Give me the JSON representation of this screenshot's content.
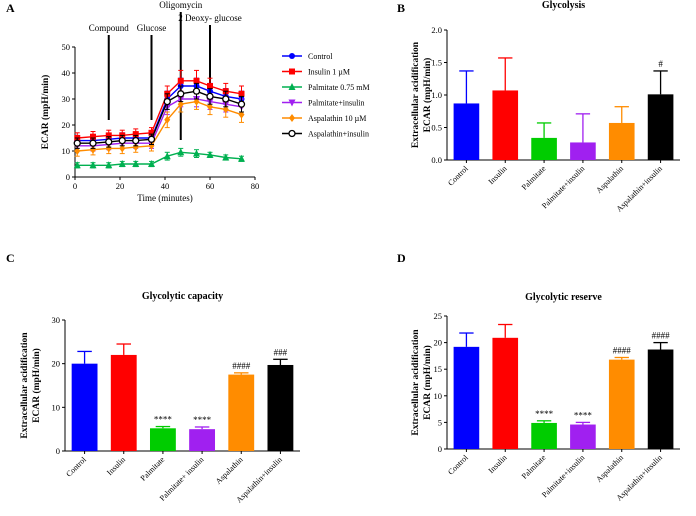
{
  "panels": {
    "A": {
      "label": "A"
    },
    "B": {
      "label": "B"
    },
    "C": {
      "label": "C"
    },
    "D": {
      "label": "D"
    }
  },
  "chart_data": [
    {
      "id": "A",
      "type": "line",
      "title": "",
      "xlabel": "Time (minutes)",
      "ylabel": "ECAR (mpH/min)",
      "xlim": [
        0,
        80
      ],
      "ylim": [
        0,
        50
      ],
      "xticks": [
        0,
        20,
        40,
        60,
        80
      ],
      "yticks": [
        0,
        10,
        20,
        30,
        40,
        50
      ],
      "x": [
        1,
        8,
        15,
        21,
        27,
        34,
        41,
        47,
        54,
        60,
        67,
        74
      ],
      "annotations": [
        {
          "text": "Compound",
          "x": 15
        },
        {
          "text": "Glucose",
          "x": 34
        },
        {
          "text": "Oligomycin",
          "x": 47
        },
        {
          "text": "2 Deoxy- glucose",
          "x": 60
        }
      ],
      "series": [
        {
          "name": "Control",
          "color": "#0000ff",
          "marker": "circle",
          "values": [
            14,
            14,
            14.5,
            15,
            15,
            15,
            30,
            35,
            35,
            33,
            31,
            30
          ],
          "errors": [
            2,
            2,
            2,
            2,
            2,
            2,
            3,
            3,
            3,
            3,
            3,
            3
          ]
        },
        {
          "name": "Insulin 1 µM",
          "color": "#ff0000",
          "marker": "square",
          "values": [
            15,
            15.5,
            16,
            16,
            16.5,
            17,
            32,
            37,
            37,
            35,
            33,
            32
          ],
          "errors": [
            2,
            2,
            2,
            2,
            2,
            2,
            3,
            4,
            4,
            3,
            3,
            3
          ]
        },
        {
          "name": "Palmitate 0.75 mM",
          "color": "#00b050",
          "marker": "triangle-up",
          "values": [
            4.5,
            4.5,
            4.5,
            5,
            5,
            5,
            8,
            9.5,
            9,
            8.5,
            7.5,
            7
          ],
          "errors": [
            1,
            1,
            1,
            1,
            1,
            1,
            1.5,
            1.5,
            1.5,
            1,
            1,
            1
          ]
        },
        {
          "name": "Palmitate+insulin",
          "color": "#a020f0",
          "marker": "triangle-down",
          "values": [
            12,
            12,
            12.5,
            13,
            13,
            13,
            27,
            30,
            30,
            29,
            28,
            27
          ],
          "errors": [
            2,
            2,
            2,
            2,
            2,
            2,
            3,
            3,
            3,
            3,
            3,
            3
          ]
        },
        {
          "name": "Aspalathin 10 µM",
          "color": "#ff8c00",
          "marker": "diamond",
          "values": [
            10,
            10.5,
            11,
            11,
            11.5,
            12,
            22,
            28,
            29,
            27,
            26,
            24
          ],
          "errors": [
            2,
            2,
            2,
            2,
            2,
            2,
            3,
            3,
            3,
            3,
            3,
            3
          ]
        },
        {
          "name": "Aspalathin+insulin",
          "color": "#000000",
          "marker": "circle-open",
          "values": [
            13,
            13,
            13.5,
            14,
            14,
            14.5,
            29,
            32,
            33,
            31,
            30,
            28
          ],
          "errors": [
            2,
            2,
            2,
            2,
            2,
            2,
            3,
            3,
            3,
            3,
            3,
            3
          ]
        }
      ],
      "legend_position": "right"
    },
    {
      "id": "B",
      "type": "bar",
      "title": "Glycolysis",
      "ylabel_line1": "Extracellular acidification",
      "ylabel_line2": "ECAR (mpH/min)",
      "ylim": [
        0,
        2.0
      ],
      "yticks": [
        "0.0",
        "0.5",
        "1.0",
        "1.5",
        "2.0"
      ],
      "categories": [
        "Control",
        "Insulin",
        "Palmitate",
        "Palmitate+insulin",
        "Aspalathin",
        "Aspalathin+insulin"
      ],
      "values": [
        0.87,
        1.07,
        0.34,
        0.27,
        0.57,
        1.01
      ],
      "errors": [
        0.5,
        0.5,
        0.23,
        0.44,
        0.25,
        0.36
      ],
      "colors": [
        "#0000ff",
        "#ff0000",
        "#00cc00",
        "#a020f0",
        "#ff8c00",
        "#000000"
      ],
      "significance": [
        "",
        "",
        "",
        "",
        "",
        "#"
      ]
    },
    {
      "id": "C",
      "type": "bar",
      "title": "Glycolytic capacity",
      "ylabel_line1": "Extracellular acidification",
      "ylabel_line2": "ECAR (mpH/min)",
      "ylim": [
        0,
        30
      ],
      "yticks": [
        "0",
        "10",
        "20",
        "30"
      ],
      "categories": [
        "Control",
        "Insulin",
        "Palmitate",
        "Palmitate+ insulin",
        "Aspalathin",
        "Aspalathin+insulin"
      ],
      "values": [
        20.0,
        22.0,
        5.2,
        5.0,
        17.5,
        19.7
      ],
      "errors": [
        2.8,
        2.5,
        0.4,
        0.5,
        0.4,
        1.3
      ],
      "colors": [
        "#0000ff",
        "#ff0000",
        "#00cc00",
        "#a020f0",
        "#ff8c00",
        "#000000"
      ],
      "significance": [
        "",
        "",
        "****",
        "****",
        "####",
        "###"
      ]
    },
    {
      "id": "D",
      "type": "bar",
      "title": "Glycolytic reserve",
      "ylabel_line1": "Extracellular acidification",
      "ylabel_line2": "ECAR (mpH/min)",
      "ylim": [
        0,
        25
      ],
      "yticks": [
        "0",
        "5",
        "10",
        "15",
        "20",
        "25"
      ],
      "categories": [
        "Control",
        "Insulin",
        "Palmitate",
        "Palmitate+insulin",
        "Aspalathin",
        "Aspalathin+insulin"
      ],
      "values": [
        19.2,
        20.9,
        4.9,
        4.6,
        16.8,
        18.7
      ],
      "errors": [
        2.6,
        2.5,
        0.4,
        0.4,
        0.4,
        1.3
      ],
      "colors": [
        "#0000ff",
        "#ff0000",
        "#00cc00",
        "#a020f0",
        "#ff8c00",
        "#000000"
      ],
      "significance": [
        "",
        "",
        "****",
        "****",
        "####",
        "####"
      ]
    }
  ]
}
